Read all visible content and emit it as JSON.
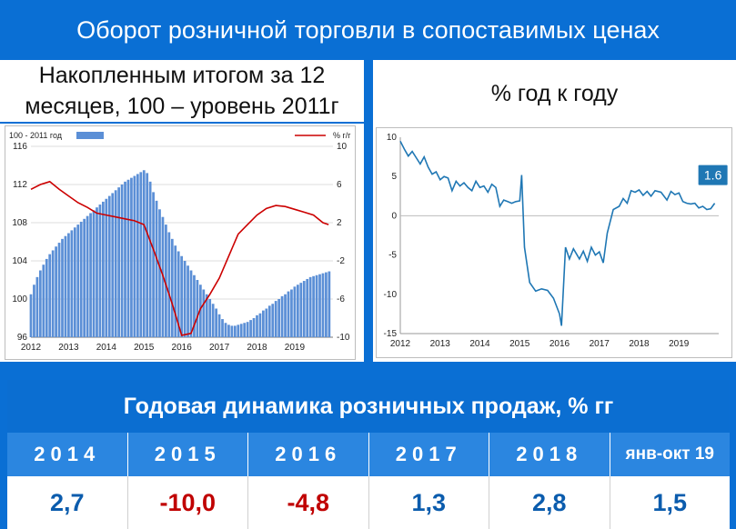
{
  "title": "Оборот розничной торговли в сопоставимых ценах",
  "subtitle_left": "Накопленным итогом за 12 месяцев, 100 – уровень 2011г",
  "subtitle_right": "% год к году",
  "chart_data": [
    {
      "type": "bar+line",
      "legend": {
        "bar_label": "100 - 2011 год",
        "line_label": "%  г/г"
      },
      "xticks": [
        "2012",
        "2013",
        "2014",
        "2015",
        "2016",
        "2017",
        "2018",
        "2019"
      ],
      "left_axis": {
        "ylim": [
          96,
          116
        ],
        "ticks": [
          96,
          100,
          104,
          108,
          112,
          116
        ]
      },
      "right_axis": {
        "ylim": [
          -10,
          10
        ],
        "ticks": [
          -10,
          -6,
          -2,
          2,
          6,
          10
        ]
      },
      "bar_series": {
        "name": "100 - 2011 год",
        "color": "#5b8fd6",
        "start": "2012-01",
        "step_months": 1,
        "values": [
          100.5,
          101.5,
          102.3,
          103.0,
          103.6,
          104.2,
          104.7,
          105.1,
          105.5,
          105.9,
          106.3,
          106.6,
          106.9,
          107.2,
          107.5,
          107.8,
          108.1,
          108.4,
          108.7,
          109.0,
          109.3,
          109.6,
          109.9,
          110.2,
          110.5,
          110.8,
          111.1,
          111.4,
          111.7,
          112.0,
          112.3,
          112.5,
          112.7,
          112.9,
          113.1,
          113.3,
          113.5,
          113.2,
          112.3,
          111.2,
          110.3,
          109.4,
          108.6,
          107.8,
          107.0,
          106.3,
          105.6,
          105.0,
          104.5,
          104.0,
          103.5,
          103.0,
          102.5,
          102.0,
          101.5,
          101.0,
          100.5,
          100.0,
          99.5,
          99.0,
          98.4,
          97.9,
          97.5,
          97.3,
          97.2,
          97.2,
          97.3,
          97.4,
          97.5,
          97.6,
          97.8,
          98.0,
          98.3,
          98.5,
          98.8,
          99.0,
          99.3,
          99.5,
          99.8,
          100.0,
          100.3,
          100.5,
          100.8,
          101.0,
          101.3,
          101.5,
          101.7,
          101.9,
          102.1,
          102.3,
          102.4,
          102.5,
          102.6,
          102.7,
          102.8,
          102.9
        ]
      },
      "line_series": {
        "name": "%  г/г",
        "color": "#cc0000",
        "axis": "right",
        "points": [
          [
            2012.0,
            5.5
          ],
          [
            2012.25,
            6.0
          ],
          [
            2012.5,
            6.3
          ],
          [
            2012.75,
            5.5
          ],
          [
            2013.0,
            4.8
          ],
          [
            2013.25,
            4.1
          ],
          [
            2013.5,
            3.6
          ],
          [
            2013.75,
            3.0
          ],
          [
            2014.0,
            2.8
          ],
          [
            2014.25,
            2.6
          ],
          [
            2014.5,
            2.4
          ],
          [
            2014.75,
            2.2
          ],
          [
            2015.0,
            1.8
          ],
          [
            2015.25,
            -0.8
          ],
          [
            2015.5,
            -3.5
          ],
          [
            2015.75,
            -6.5
          ],
          [
            2016.0,
            -9.8
          ],
          [
            2016.25,
            -9.6
          ],
          [
            2016.5,
            -7.0
          ],
          [
            2016.75,
            -5.5
          ],
          [
            2017.0,
            -3.8
          ],
          [
            2017.25,
            -1.5
          ],
          [
            2017.5,
            0.8
          ],
          [
            2017.75,
            1.8
          ],
          [
            2018.0,
            2.8
          ],
          [
            2018.25,
            3.5
          ],
          [
            2018.5,
            3.8
          ],
          [
            2018.75,
            3.7
          ],
          [
            2019.0,
            3.4
          ],
          [
            2019.25,
            3.1
          ],
          [
            2019.5,
            2.8
          ],
          [
            2019.75,
            2.0
          ],
          [
            2019.9,
            1.8
          ]
        ]
      },
      "grid": true
    },
    {
      "type": "line",
      "xticks": [
        "2012",
        "2013",
        "2014",
        "2015",
        "2016",
        "2017",
        "2018",
        "2019"
      ],
      "yticks": [
        10,
        5,
        0,
        -5,
        -10,
        -15
      ],
      "ylim": [
        -15,
        10
      ],
      "color": "#1f77b4",
      "last_value_label": "1.6",
      "points": [
        [
          2012.0,
          9.5
        ],
        [
          2012.1,
          8.5
        ],
        [
          2012.2,
          7.6
        ],
        [
          2012.3,
          8.2
        ],
        [
          2012.4,
          7.4
        ],
        [
          2012.5,
          6.6
        ],
        [
          2012.6,
          7.5
        ],
        [
          2012.7,
          6.2
        ],
        [
          2012.8,
          5.3
        ],
        [
          2012.9,
          5.6
        ],
        [
          2013.0,
          4.6
        ],
        [
          2013.1,
          5.0
        ],
        [
          2013.2,
          4.8
        ],
        [
          2013.3,
          3.2
        ],
        [
          2013.4,
          4.4
        ],
        [
          2013.5,
          3.8
        ],
        [
          2013.6,
          4.2
        ],
        [
          2013.7,
          3.6
        ],
        [
          2013.8,
          3.2
        ],
        [
          2013.9,
          4.4
        ],
        [
          2014.0,
          3.6
        ],
        [
          2014.1,
          3.8
        ],
        [
          2014.2,
          3.0
        ],
        [
          2014.3,
          4.0
        ],
        [
          2014.4,
          3.6
        ],
        [
          2014.5,
          1.2
        ],
        [
          2014.6,
          2.0
        ],
        [
          2014.7,
          1.8
        ],
        [
          2014.8,
          1.6
        ],
        [
          2014.9,
          1.8
        ],
        [
          2015.0,
          1.9
        ],
        [
          2015.05,
          5.2
        ],
        [
          2015.12,
          -4.0
        ],
        [
          2015.25,
          -8.5
        ],
        [
          2015.4,
          -9.6
        ],
        [
          2015.55,
          -9.3
        ],
        [
          2015.7,
          -9.5
        ],
        [
          2015.85,
          -10.5
        ],
        [
          2016.0,
          -12.5
        ],
        [
          2016.05,
          -14.0
        ],
        [
          2016.15,
          -4.0
        ],
        [
          2016.25,
          -5.5
        ],
        [
          2016.35,
          -4.2
        ],
        [
          2016.5,
          -5.5
        ],
        [
          2016.6,
          -4.5
        ],
        [
          2016.7,
          -5.8
        ],
        [
          2016.8,
          -4.0
        ],
        [
          2016.9,
          -5.0
        ],
        [
          2017.0,
          -4.6
        ],
        [
          2017.1,
          -6.0
        ],
        [
          2017.2,
          -2.2
        ],
        [
          2017.35,
          0.8
        ],
        [
          2017.5,
          1.2
        ],
        [
          2017.6,
          2.2
        ],
        [
          2017.7,
          1.6
        ],
        [
          2017.8,
          3.2
        ],
        [
          2017.9,
          3.0
        ],
        [
          2018.0,
          3.3
        ],
        [
          2018.1,
          2.6
        ],
        [
          2018.2,
          3.1
        ],
        [
          2018.3,
          2.5
        ],
        [
          2018.4,
          3.2
        ],
        [
          2018.55,
          3.0
        ],
        [
          2018.7,
          2.0
        ],
        [
          2018.8,
          3.1
        ],
        [
          2018.9,
          2.7
        ],
        [
          2019.0,
          2.9
        ],
        [
          2019.1,
          1.8
        ],
        [
          2019.2,
          1.6
        ],
        [
          2019.3,
          1.5
        ],
        [
          2019.4,
          1.6
        ],
        [
          2019.5,
          1.0
        ],
        [
          2019.6,
          1.2
        ],
        [
          2019.7,
          0.8
        ],
        [
          2019.8,
          0.9
        ],
        [
          2019.9,
          1.6
        ]
      ]
    }
  ],
  "table": {
    "title": "Годовая динамика розничных продаж, % гг",
    "years": [
      "2014",
      "2015",
      "2016",
      "2017",
      "2018",
      "янв-окт 19"
    ],
    "values": [
      "2,7",
      "-10,0",
      "-4,8",
      "1,3",
      "2,8",
      "1,5"
    ],
    "value_signs": [
      "pos",
      "neg",
      "neg",
      "pos",
      "pos",
      "pos"
    ]
  }
}
